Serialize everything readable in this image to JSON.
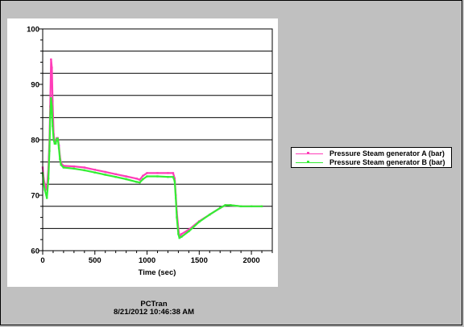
{
  "footer": {
    "app": "PCTran",
    "timestamp": "8/21/2012 10:46:38 AM"
  },
  "colors": {
    "background": "#c0c0c0",
    "plot_bg": "#ffffff",
    "series_a": "#ff3db8",
    "series_b": "#33ee33"
  },
  "chart_data": {
    "type": "line",
    "title": "",
    "xlabel": "Time (sec)",
    "ylabel": "",
    "xlim": [
      0,
      2200
    ],
    "ylim": [
      60,
      100
    ],
    "xticks": [
      0,
      500,
      1000,
      1500,
      2000
    ],
    "yticks": [
      60,
      70,
      80,
      90,
      100
    ],
    "grid": "horizontal",
    "legend_position": "right",
    "series": [
      {
        "name": "Pressure Steam generator A (bar)",
        "color": "#ff3db8",
        "x": [
          0,
          10,
          20,
          40,
          55,
          65,
          72,
          80,
          88,
          95,
          105,
          115,
          125,
          135,
          145,
          155,
          165,
          175,
          200,
          300,
          400,
          500,
          600,
          700,
          800,
          900,
          930,
          960,
          1000,
          1100,
          1200,
          1250,
          1265,
          1275,
          1285,
          1300,
          1310,
          1330,
          1400,
          1500,
          1600,
          1700,
          1750,
          1800,
          1900,
          2000,
          2100
        ],
        "y": [
          75,
          73,
          72,
          71,
          75,
          80,
          86,
          94.5,
          93,
          87,
          81,
          79.5,
          79.5,
          80.3,
          80.3,
          79,
          77,
          75.8,
          75.3,
          75.2,
          75,
          74.6,
          74.2,
          73.8,
          73.4,
          73,
          72.8,
          73.5,
          74,
          74,
          74,
          74,
          73,
          70,
          67,
          64,
          62.5,
          63,
          63.8,
          65.3,
          66.5,
          67.7,
          68.2,
          68.2,
          68,
          68,
          68
        ]
      },
      {
        "name": "Pressure Steam generator B (bar)",
        "color": "#33ee33",
        "x": [
          0,
          10,
          20,
          40,
          55,
          65,
          72,
          80,
          88,
          95,
          105,
          115,
          125,
          135,
          145,
          155,
          165,
          175,
          200,
          300,
          400,
          500,
          600,
          700,
          800,
          900,
          930,
          960,
          1000,
          1100,
          1200,
          1250,
          1265,
          1275,
          1285,
          1300,
          1310,
          1330,
          1400,
          1500,
          1600,
          1700,
          1750,
          1800,
          1900,
          2000,
          2100
        ],
        "y": [
          74,
          72,
          71,
          69.5,
          73,
          78,
          84,
          87.5,
          86,
          82.5,
          80,
          79.3,
          79.3,
          80.2,
          80.2,
          78.5,
          76.5,
          75.5,
          75,
          74.8,
          74.5,
          74.1,
          73.7,
          73.3,
          72.9,
          72.4,
          72.3,
          72.9,
          73.4,
          73.4,
          73.3,
          73.3,
          72.5,
          69.5,
          66,
          63,
          62.3,
          62.5,
          63.5,
          65.2,
          66.5,
          67.7,
          68.2,
          68.2,
          68,
          68,
          68
        ]
      }
    ]
  }
}
